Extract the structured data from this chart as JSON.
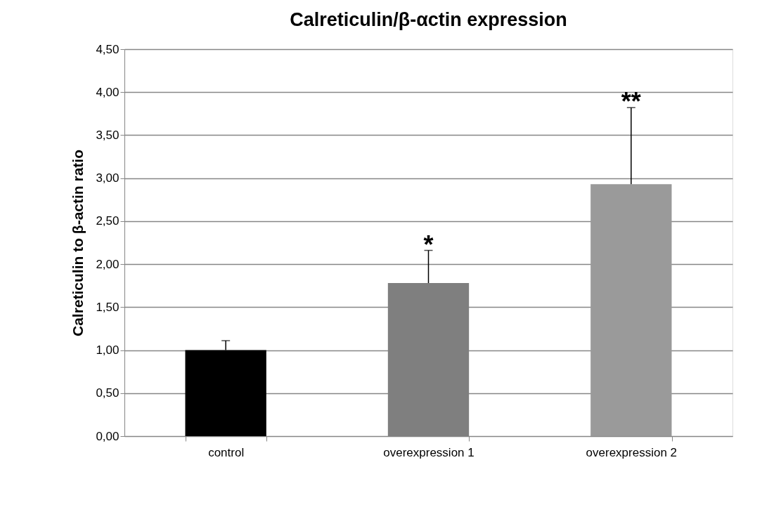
{
  "chart_data": {
    "type": "bar",
    "title": "Calreticulin/β-αctin expression",
    "ylabel": "Calreticulin to β-actin ratio",
    "categories": [
      "control",
      "overexpression 1",
      "overexpression 2"
    ],
    "values": [
      1.0,
      1.78,
      2.93
    ],
    "colors": [
      "#000000",
      "#7f7f7f",
      "#9a9a9a"
    ],
    "errors": [
      [
        1.0,
        1.11
      ],
      [
        1.78,
        2.16
      ],
      [
        2.93,
        3.82
      ]
    ],
    "ylim": [
      0,
      4.5
    ],
    "yticks": [
      {
        "value": 0,
        "label": "0,00"
      },
      {
        "value": 0.5,
        "label": "0,50"
      },
      {
        "value": 1,
        "label": "1,00"
      },
      {
        "value": 1.5,
        "label": "1,50"
      },
      {
        "value": 2,
        "label": "2,00"
      },
      {
        "value": 2.5,
        "label": "2,50"
      },
      {
        "value": 3,
        "label": "3,00"
      },
      {
        "value": 3.5,
        "label": "3,50"
      },
      {
        "value": 4,
        "label": "4,00"
      },
      {
        "value": 4.5,
        "label": "4,50"
      }
    ],
    "value_labels": [
      null,
      "*",
      "**"
    ],
    "grid": "y"
  }
}
